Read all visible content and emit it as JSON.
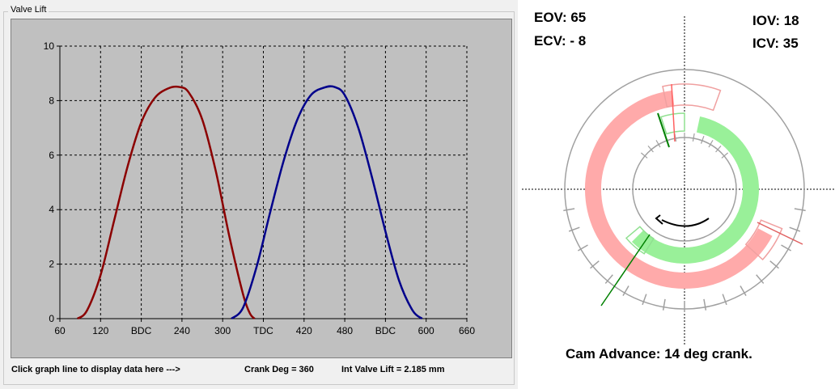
{
  "group": {
    "title": "Valve Lift"
  },
  "status": {
    "hint": "Click graph line to display data here    --->",
    "crank_deg": "Crank Deg = 360",
    "int_valve_lift": "Int Valve Lift = 2.185 mm"
  },
  "timing": {
    "eov": "EOV: 65",
    "ecv": "ECV: - 8",
    "iov": "IOV: 18",
    "icv": "ICV: 35",
    "cam_advance": "Cam Advance: 14 deg crank."
  },
  "colors": {
    "exhaust": "#8b0000",
    "intake": "#00008b",
    "exhaust_arc": "#ffaaaa",
    "intake_arc": "#99f099"
  },
  "chart_data": {
    "type": "line",
    "title": "",
    "xlabel": "",
    "ylabel": "",
    "xlim": [
      60,
      660
    ],
    "ylim": [
      0,
      10
    ],
    "grid": true,
    "x_ticks": [
      {
        "value": 60,
        "label": "60"
      },
      {
        "value": 120,
        "label": "120"
      },
      {
        "value": 180,
        "label": "BDC"
      },
      {
        "value": 240,
        "label": "240"
      },
      {
        "value": 300,
        "label": "300"
      },
      {
        "value": 360,
        "label": "TDC"
      },
      {
        "value": 420,
        "label": "420"
      },
      {
        "value": 480,
        "label": "480"
      },
      {
        "value": 540,
        "label": "BDC"
      },
      {
        "value": 600,
        "label": "600"
      },
      {
        "value": 660,
        "label": "660"
      }
    ],
    "y_ticks": [
      0,
      2,
      4,
      6,
      8,
      10
    ],
    "series": [
      {
        "key": "exhaust",
        "color": "#8b0000",
        "x": [
          86,
          100,
          120,
          140,
          160,
          180,
          200,
          220,
          236,
          250,
          270,
          290,
          310,
          330,
          340,
          347
        ],
        "y": [
          0,
          0.3,
          1.6,
          3.6,
          5.6,
          7.2,
          8.1,
          8.45,
          8.5,
          8.3,
          7.3,
          5.4,
          3.0,
          0.9,
          0.2,
          0
        ]
      },
      {
        "key": "intake",
        "color": "#00008b",
        "x": [
          313,
          330,
          350,
          370,
          390,
          410,
          430,
          450,
          465,
          480,
          500,
          520,
          540,
          560,
          580,
          594
        ],
        "y": [
          0,
          0.4,
          1.9,
          3.9,
          5.8,
          7.3,
          8.2,
          8.48,
          8.5,
          8.2,
          7.0,
          5.2,
          3.2,
          1.4,
          0.3,
          0
        ]
      }
    ]
  }
}
